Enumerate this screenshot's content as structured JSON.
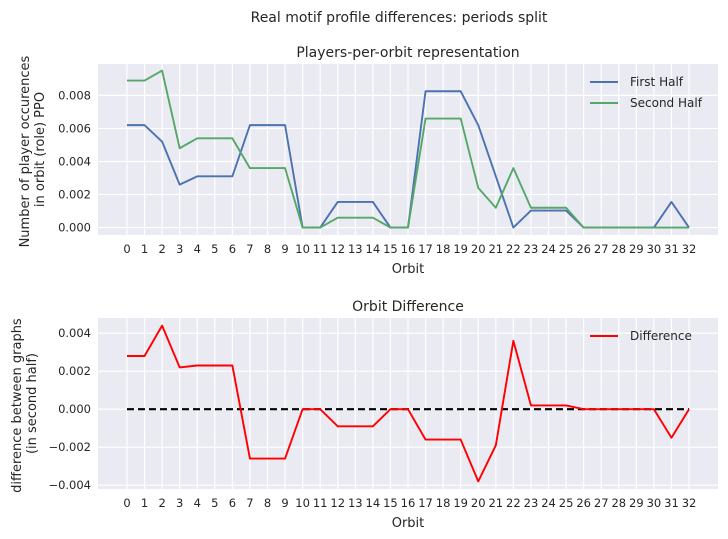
{
  "figure": {
    "suptitle": "Real motif profile differences: periods split"
  },
  "chart_data": [
    {
      "type": "line",
      "title": "Players-per-orbit representation",
      "xlabel": "Orbit",
      "ylabel_lines": [
        "Number of player occurences",
        "in orbit (role) PPO"
      ],
      "x": [
        0,
        1,
        2,
        3,
        4,
        5,
        6,
        7,
        8,
        9,
        10,
        11,
        12,
        13,
        14,
        15,
        16,
        17,
        18,
        19,
        20,
        21,
        22,
        23,
        24,
        25,
        26,
        27,
        28,
        29,
        30,
        31,
        32
      ],
      "xlim": [
        -1.65,
        33.65
      ],
      "ylim": [
        -0.00045,
        0.0099
      ],
      "yticks": [
        0.0,
        0.002,
        0.004,
        0.006,
        0.008
      ],
      "ytick_labels": [
        "0.000",
        "0.002",
        "0.004",
        "0.006",
        "0.008"
      ],
      "legend_position": "top-right",
      "grid": true,
      "series": [
        {
          "name": "First Half",
          "color": "#4c72b0",
          "values": [
            0.0062,
            0.0062,
            0.0052,
            0.0026,
            0.0031,
            0.0031,
            0.0031,
            0.0062,
            0.0062,
            0.0062,
            0.0,
            0.0,
            0.00155,
            0.00155,
            0.00155,
            0.0,
            0.0,
            0.00825,
            0.00825,
            0.00825,
            0.0062,
            0.0031,
            0.0,
            0.00103,
            0.00103,
            0.00103,
            0.0,
            0.0,
            0.0,
            0.0,
            0.0,
            0.00155,
            0.0
          ]
        },
        {
          "name": "Second Half",
          "color": "#55a868",
          "values": [
            0.0089,
            0.0089,
            0.0095,
            0.0048,
            0.0054,
            0.0054,
            0.0054,
            0.0036,
            0.0036,
            0.0036,
            0.0,
            0.0,
            0.0006,
            0.0006,
            0.0006,
            0.0,
            0.0,
            0.0066,
            0.0066,
            0.0066,
            0.0024,
            0.0012,
            0.0036,
            0.0012,
            0.0012,
            0.0012,
            0.0,
            0.0,
            0.0,
            0.0,
            0.0,
            0.0,
            0.0
          ]
        }
      ]
    },
    {
      "type": "line",
      "title": "Orbit Difference",
      "xlabel": "Orbit",
      "ylabel_lines": [
        "difference between graphs",
        "(in second half)"
      ],
      "x": [
        0,
        1,
        2,
        3,
        4,
        5,
        6,
        7,
        8,
        9,
        10,
        11,
        12,
        13,
        14,
        15,
        16,
        17,
        18,
        19,
        20,
        21,
        22,
        23,
        24,
        25,
        26,
        27,
        28,
        29,
        30,
        31,
        32
      ],
      "xlim": [
        -1.65,
        33.65
      ],
      "ylim": [
        -0.0042,
        0.0048
      ],
      "yticks": [
        -0.004,
        -0.002,
        0.0,
        0.002,
        0.004
      ],
      "ytick_labels": [
        "−0.004",
        "−0.002",
        "0.000",
        "0.002",
        "0.004"
      ],
      "legend_position": "top-right",
      "grid": true,
      "baseline": {
        "value": 0.0,
        "color": "#000000",
        "style": "dashed"
      },
      "series": [
        {
          "name": "Difference",
          "color": "#ff0000",
          "values": [
            0.0028,
            0.0028,
            0.0044,
            0.0022,
            0.0023,
            0.0023,
            0.0023,
            -0.0026,
            -0.0026,
            -0.0026,
            0.0,
            0.0,
            -0.0009,
            -0.0009,
            -0.0009,
            0.0,
            0.0,
            -0.0016,
            -0.0016,
            -0.0016,
            -0.0038,
            -0.0019,
            0.0036,
            0.0002,
            0.0002,
            0.0002,
            0.0,
            0.0,
            0.0,
            0.0,
            0.0,
            -0.0015,
            0.0
          ]
        }
      ]
    }
  ]
}
